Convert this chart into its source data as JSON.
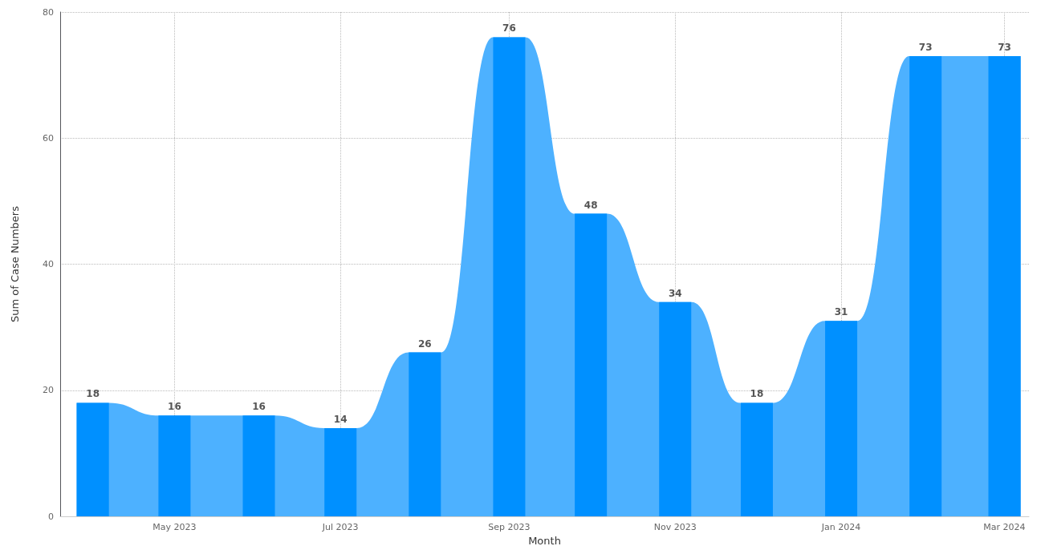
{
  "chart_data": {
    "type": "bar",
    "xlabel": "Month",
    "ylabel": "Sum of Case Numbers",
    "x": [
      "2023-04",
      "2023-05",
      "2023-06",
      "2023-07",
      "2023-08",
      "2023-09",
      "2023-10",
      "2023-11",
      "2023-12",
      "2024-01",
      "2024-02",
      "2024-03"
    ],
    "series": [
      {
        "type": "area",
        "color": "#4db1ff",
        "x": [
          "2023-03-26",
          "2023-04-07",
          "2023-04-25",
          "2023-05-07",
          "2023-05-26",
          "2023-06-07",
          "2023-06-25",
          "2023-07-07",
          "2023-07-26",
          "2023-08-07",
          "2023-08-26",
          "2023-09-07",
          "2023-09-25",
          "2023-10-07",
          "2023-10-26",
          "2023-11-07",
          "2023-11-25",
          "2023-12-07",
          "2023-12-26",
          "2024-01-07",
          "2024-01-26",
          "2024-02-07",
          "2024-02-24",
          "2024-03-07"
        ],
        "values": [
          18,
          18,
          16,
          16,
          16,
          16,
          14,
          14,
          26,
          26,
          76,
          76,
          48,
          48,
          34,
          34,
          18,
          18,
          31,
          31,
          73,
          73,
          73,
          73
        ]
      },
      {
        "color": "#0090ff",
        "values": [
          18,
          16,
          16,
          14,
          26,
          76,
          48,
          34,
          18,
          31,
          73,
          73
        ],
        "value_labels": [
          "18",
          "16",
          "16",
          "14",
          "26",
          "76",
          "48",
          "34",
          "18",
          "31",
          "73",
          "73"
        ]
      }
    ],
    "xlim": [
      "2023-03-20",
      "2024-03-10"
    ],
    "xticks": [
      {
        "value": "2023-05",
        "label": "May 2023"
      },
      {
        "value": "2023-07",
        "label": "Jul 2023"
      },
      {
        "value": "2023-09",
        "label": "Sep 2023"
      },
      {
        "value": "2023-11",
        "label": "Nov 2023"
      },
      {
        "value": "2024-01",
        "label": "Jan 2024"
      },
      {
        "value": "2024-03",
        "label": "Mar 2024"
      }
    ],
    "ylim": [
      0,
      80
    ],
    "yticks": [
      0,
      20,
      40,
      60,
      80
    ],
    "grid": true
  }
}
